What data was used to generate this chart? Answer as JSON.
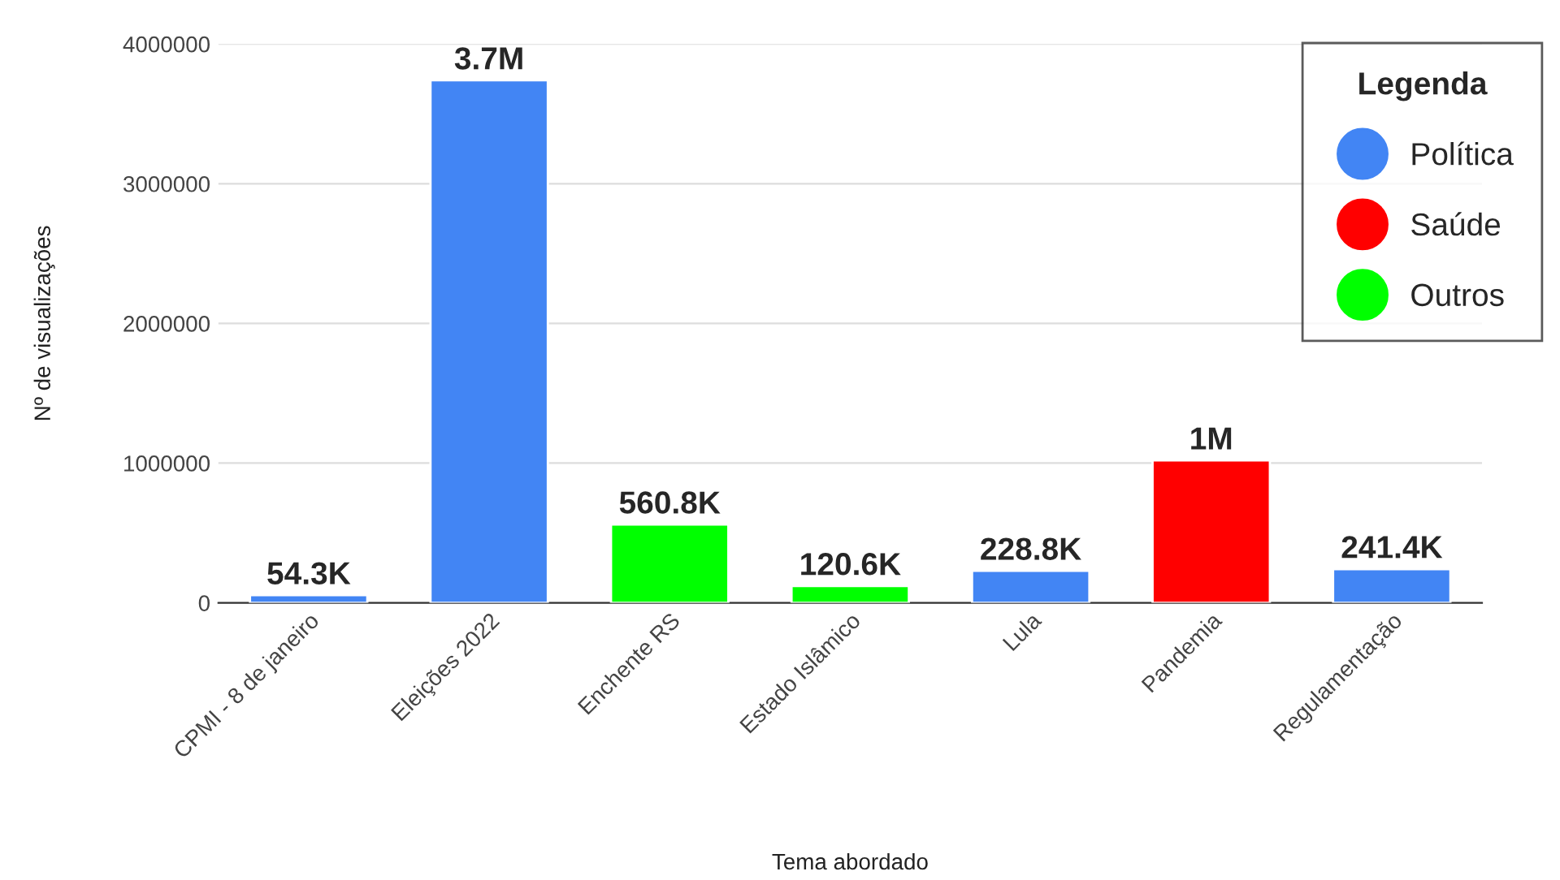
{
  "chart_data": {
    "type": "bar",
    "xlabel": "Tema abordado",
    "ylabel": "Nº de visualizações",
    "categories": [
      "CPMI - 8 de janeiro",
      "Eleições 2022",
      "Enchente RS",
      "Estado Islâmico",
      "Lula",
      "Pandemia",
      "Regulamentação"
    ],
    "series": [
      {
        "name": "Política",
        "color": "#4285f4",
        "values": [
          54300,
          3740000,
          null,
          null,
          228800,
          null,
          241400
        ],
        "value_labels": [
          "54.3K",
          "3.7M",
          null,
          null,
          "228.8K",
          null,
          "241.4K"
        ]
      },
      {
        "name": "Saúde",
        "color": "#ff0000",
        "values": [
          null,
          null,
          null,
          null,
          null,
          1020000,
          null
        ],
        "value_labels": [
          null,
          null,
          null,
          null,
          null,
          "1M",
          null
        ]
      },
      {
        "name": "Outros",
        "color": "#00ff00",
        "values": [
          null,
          null,
          560800,
          120600,
          null,
          null,
          null
        ],
        "value_labels": [
          null,
          null,
          "560.8K",
          "120.6K",
          null,
          null,
          null
        ]
      }
    ],
    "ylim": [
      0,
      4000000
    ],
    "yticks": [
      0,
      1000000,
      2000000,
      3000000,
      4000000
    ],
    "grid": "y",
    "legend": "top right",
    "legend_title": "Legenda",
    "marker": "circle"
  }
}
